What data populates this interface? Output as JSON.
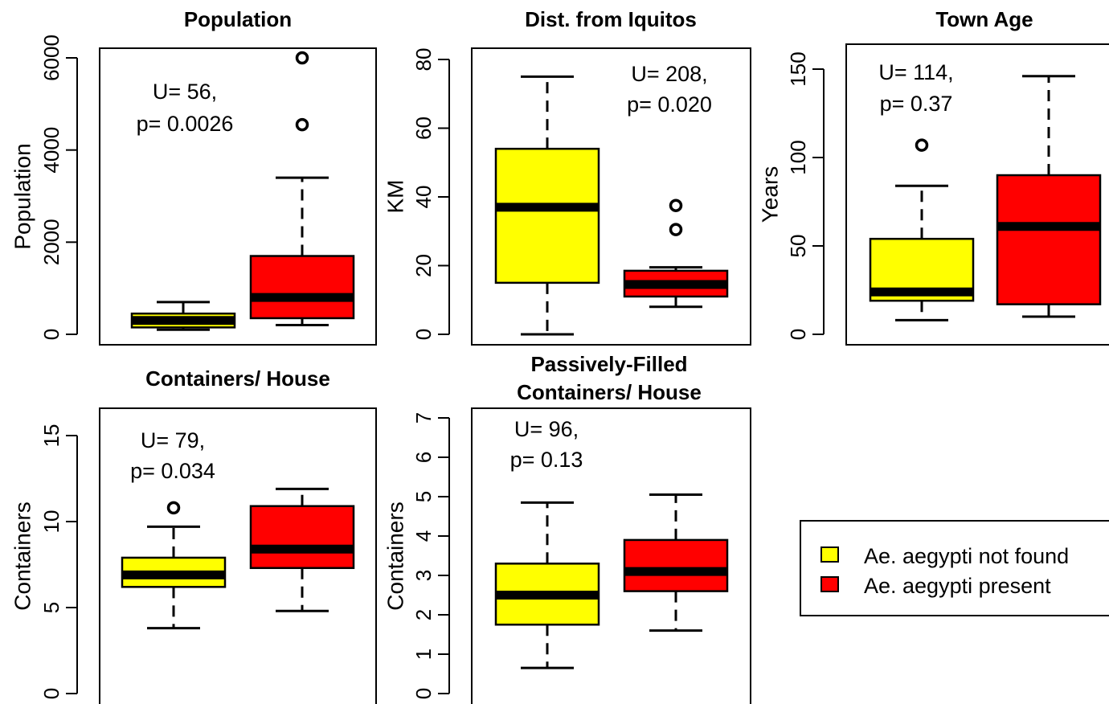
{
  "chart_data": [
    {
      "type": "boxplot",
      "title": "Population",
      "ylabel": "Population",
      "ylim": [
        0,
        6000
      ],
      "yticks": [
        0,
        2000,
        4000,
        6000
      ],
      "annotation": [
        "U= 56,",
        "p= 0.0026"
      ],
      "groups": [
        {
          "series": "Ae. aegypti not found",
          "whisker_low": 100,
          "q1": 150,
          "median": 300,
          "q3": 450,
          "whisker_high": 700,
          "outliers": []
        },
        {
          "series": "Ae. aegypti present",
          "whisker_low": 200,
          "q1": 350,
          "median": 800,
          "q3": 1700,
          "whisker_high": 3400,
          "outliers": [
            4550,
            6000
          ]
        }
      ]
    },
    {
      "type": "boxplot",
      "title": "Dist. from Iquitos",
      "ylabel": "KM",
      "ylim": [
        0,
        80
      ],
      "yticks": [
        0,
        20,
        40,
        60,
        80
      ],
      "annotation": [
        "U= 208,",
        "p= 0.020"
      ],
      "groups": [
        {
          "series": "Ae. aegypti not found",
          "whisker_low": 0,
          "q1": 15,
          "median": 37,
          "q3": 54,
          "whisker_high": 75,
          "outliers": []
        },
        {
          "series": "Ae. aegypti present",
          "whisker_low": 8,
          "q1": 11,
          "median": 14.5,
          "q3": 18.5,
          "whisker_high": 19.5,
          "outliers": [
            30.5,
            37.5
          ]
        }
      ]
    },
    {
      "type": "boxplot",
      "title": "Town Age",
      "ylabel": "Years",
      "ylim": [
        0,
        150
      ],
      "yticks": [
        0,
        50,
        100,
        150
      ],
      "annotation": [
        "U= 114,",
        "p= 0.37"
      ],
      "groups": [
        {
          "series": "Ae. aegypti not found",
          "whisker_low": 8,
          "q1": 19,
          "median": 24,
          "q3": 54,
          "whisker_high": 84,
          "outliers": [
            107
          ]
        },
        {
          "series": "Ae. aegypti present",
          "whisker_low": 10,
          "q1": 17,
          "median": 61,
          "q3": 90,
          "whisker_high": 146,
          "outliers": []
        }
      ]
    },
    {
      "type": "boxplot",
      "title": "Containers/ House",
      "ylabel": "Containers",
      "ylim": [
        0,
        15
      ],
      "yticks": [
        0,
        5,
        10,
        15
      ],
      "annotation": [
        "U= 79,",
        "p= 0.034"
      ],
      "groups": [
        {
          "series": "Ae. aegypti not found",
          "whisker_low": 3.8,
          "q1": 6.2,
          "median": 6.9,
          "q3": 7.9,
          "whisker_high": 9.7,
          "outliers": [
            10.8
          ]
        },
        {
          "series": "Ae. aegypti present",
          "whisker_low": 4.8,
          "q1": 7.3,
          "median": 8.4,
          "q3": 10.9,
          "whisker_high": 11.9,
          "outliers": []
        }
      ]
    },
    {
      "type": "boxplot",
      "title": "Passively-Filled Containers/ House",
      "title_lines": [
        "Passively-Filled",
        "Containers/ House"
      ],
      "ylabel": "Containers",
      "ylim": [
        0,
        7
      ],
      "yticks": [
        0,
        1,
        2,
        3,
        4,
        5,
        6,
        7
      ],
      "annotation": [
        "U= 96,",
        "p= 0.13"
      ],
      "groups": [
        {
          "series": "Ae. aegypti not found",
          "whisker_low": 0.65,
          "q1": 1.75,
          "median": 2.5,
          "q3": 3.3,
          "whisker_high": 4.85,
          "outliers": []
        },
        {
          "series": "Ae. aegypti present",
          "whisker_low": 1.6,
          "q1": 2.6,
          "median": 3.1,
          "q3": 3.9,
          "whisker_high": 5.05,
          "outliers": []
        }
      ]
    }
  ],
  "legend": {
    "placement": "bottom-right",
    "items": [
      {
        "label": "Ae. aegypti not found",
        "color": "#ffff00"
      },
      {
        "label": "Ae. aegypti present",
        "color": "#ff0000"
      }
    ]
  }
}
